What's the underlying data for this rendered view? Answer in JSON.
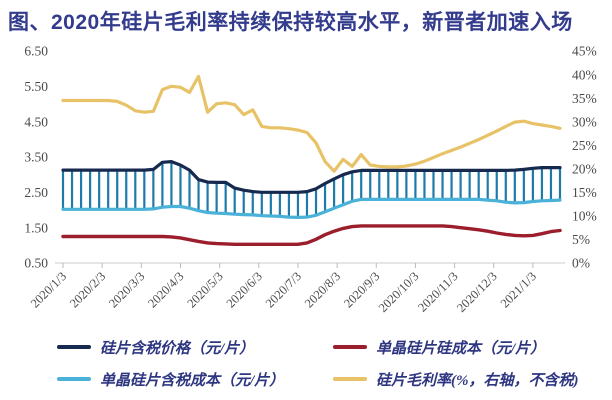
{
  "title": "图、2020年硅片毛利率持续保持较高水平，新晋者加速入场",
  "colors": {
    "title_text": "#333b8c",
    "axis_text": "#4a4a4a",
    "axis_line": "#cccccc",
    "tick_mark": "#bbbbbb",
    "price_line": "#16294e",
    "cost_incl_tax_line": "#4ab2d9",
    "silicon_cost_line": "#9c1e2c",
    "margin_line": "#e8c266",
    "hatch": "#1e7aa9"
  },
  "chart_data": {
    "type": "line",
    "title": "2020年硅片毛利率持续保持较高水平",
    "x_tick_labels": [
      "2020/1/3",
      "2020/2/3",
      "2020/3/3",
      "2020/4/3",
      "2020/5/3",
      "2020/6/3",
      "2020/7/3",
      "2020/8/3",
      "2020/9/3",
      "2020/10/3",
      "2020/11/3",
      "2020/12/3",
      "2021/1/3"
    ],
    "left_axis": {
      "labels": [
        "6.50",
        "5.50",
        "4.50",
        "3.50",
        "2.50",
        "1.50",
        "0.50"
      ],
      "min": 0.5,
      "max": 6.5
    },
    "right_axis": {
      "labels": [
        "45%",
        "40%",
        "35%",
        "30%",
        "25%",
        "20%",
        "15%",
        "10%",
        "5%",
        "0%"
      ],
      "min": 0,
      "max": 45
    },
    "grid": false,
    "legend_position": "bottom",
    "frequency": "weekly",
    "series": [
      {
        "name": "硅片含税价格（元/片）",
        "axis": "left",
        "color": "#16294e",
        "values": [
          3.13,
          3.13,
          3.13,
          3.13,
          3.13,
          3.13,
          3.13,
          3.13,
          3.13,
          3.13,
          3.15,
          3.35,
          3.37,
          3.27,
          3.13,
          2.86,
          2.79,
          2.78,
          2.78,
          2.62,
          2.56,
          2.52,
          2.5,
          2.5,
          2.5,
          2.5,
          2.5,
          2.52,
          2.6,
          2.75,
          2.88,
          3.0,
          3.08,
          3.12,
          3.12,
          3.12,
          3.12,
          3.12,
          3.12,
          3.12,
          3.12,
          3.12,
          3.12,
          3.12,
          3.12,
          3.12,
          3.12,
          3.12,
          3.12,
          3.12,
          3.13,
          3.15,
          3.18,
          3.2,
          3.2,
          3.2
        ]
      },
      {
        "name": "单晶硅片含税成本（元/片）",
        "axis": "left",
        "color": "#4ab2d9",
        "values": [
          2.02,
          2.02,
          2.02,
          2.02,
          2.02,
          2.02,
          2.02,
          2.02,
          2.02,
          2.02,
          2.03,
          2.08,
          2.1,
          2.1,
          2.05,
          1.98,
          1.93,
          1.91,
          1.9,
          1.88,
          1.87,
          1.86,
          1.84,
          1.83,
          1.82,
          1.8,
          1.79,
          1.8,
          1.85,
          1.95,
          2.05,
          2.15,
          2.25,
          2.3,
          2.3,
          2.3,
          2.3,
          2.3,
          2.3,
          2.3,
          2.3,
          2.3,
          2.3,
          2.3,
          2.3,
          2.3,
          2.3,
          2.28,
          2.26,
          2.22,
          2.2,
          2.21,
          2.24,
          2.26,
          2.27,
          2.28
        ]
      },
      {
        "name": "单晶硅片硅成本（元/片）",
        "axis": "left",
        "color": "#9c1e2c",
        "values": [
          1.25,
          1.25,
          1.25,
          1.25,
          1.25,
          1.25,
          1.25,
          1.25,
          1.25,
          1.25,
          1.25,
          1.25,
          1.24,
          1.21,
          1.16,
          1.11,
          1.07,
          1.05,
          1.04,
          1.03,
          1.03,
          1.03,
          1.03,
          1.03,
          1.03,
          1.03,
          1.03,
          1.07,
          1.17,
          1.3,
          1.4,
          1.48,
          1.53,
          1.55,
          1.55,
          1.55,
          1.55,
          1.55,
          1.55,
          1.55,
          1.55,
          1.55,
          1.55,
          1.53,
          1.5,
          1.47,
          1.44,
          1.4,
          1.35,
          1.31,
          1.28,
          1.27,
          1.28,
          1.33,
          1.39,
          1.42
        ]
      },
      {
        "name": "硅片毛利率(%，右轴，不含税)",
        "axis": "right",
        "color": "#e8c266",
        "values": [
          34.5,
          34.5,
          34.5,
          34.5,
          34.5,
          34.5,
          34.3,
          33.5,
          32.3,
          32.0,
          32.2,
          36.8,
          37.5,
          37.3,
          36.2,
          39.6,
          32.0,
          33.8,
          34.0,
          33.6,
          31.5,
          32.5,
          29.0,
          28.7,
          28.7,
          28.5,
          28.2,
          27.7,
          25.5,
          21.5,
          19.5,
          22.0,
          20.5,
          23.0,
          20.8,
          20.5,
          20.4,
          20.4,
          20.6,
          21.0,
          21.6,
          22.4,
          23.2,
          23.9,
          24.6,
          25.4,
          26.2,
          27.1,
          28.0,
          29.0,
          29.9,
          30.1,
          29.6,
          29.3,
          29.0,
          28.6
        ]
      }
    ],
    "band": {
      "upper_series": 0,
      "lower_series": 1,
      "hatch_color": "#1e7aa9",
      "style": "vertical-hatch"
    }
  },
  "legend": {
    "items": [
      {
        "label": "硅片含税价格（元/片）",
        "color": "#16294e"
      },
      {
        "label": "单晶硅片硅成本（元/片）",
        "color": "#9c1e2c"
      },
      {
        "label": "单晶硅片含税成本（元/片）",
        "color": "#4ab2d9"
      },
      {
        "label": "硅片毛利率(%，右轴，不含税)",
        "color": "#e8c266"
      }
    ]
  }
}
